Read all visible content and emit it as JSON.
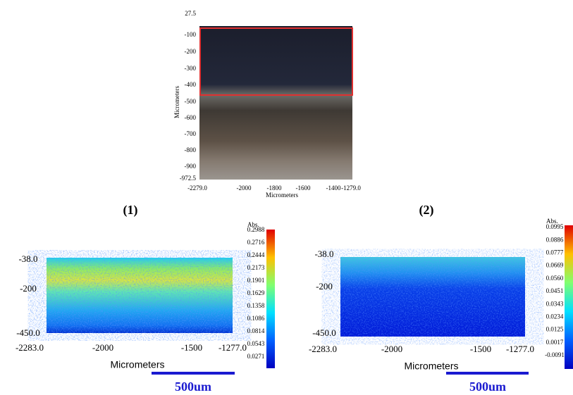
{
  "top_panel": {
    "y_axis_label": "Micrometers",
    "x_axis_label": "Micrometers",
    "yticks": [
      "27.5",
      "-100",
      "-200",
      "-300",
      "-400",
      "-500",
      "-600",
      "-700",
      "-800",
      "-900",
      "-972.5"
    ],
    "xticks": [
      "-2279.0",
      "-2000",
      "-1800",
      "-1600",
      "-1400",
      "-1279.0"
    ]
  },
  "panel_labels": [
    "(1)",
    "(2)"
  ],
  "maps": [
    {
      "yticks": [
        "-38.0",
        "-200",
        "-450.0"
      ],
      "xticks": [
        "-2283.0",
        "-2000",
        "-1500",
        "-1277.0"
      ],
      "x_axis_label": "Micrometers",
      "colorbar_title": "Abs.",
      "colorbar_ticks": [
        "0.2988",
        "0.2716",
        "0.2444",
        "0.2173",
        "0.1901",
        "0.1629",
        "0.1358",
        "0.1086",
        "0.0814",
        "0.0543",
        "0.0271"
      ],
      "scale_bar": "500um"
    },
    {
      "yticks": [
        "-38.0",
        "-200",
        "-450.0"
      ],
      "xticks": [
        "-2283.0",
        "-2000",
        "-1500",
        "-1277.0"
      ],
      "x_axis_label": "Micrometers",
      "colorbar_title": "Abs.",
      "colorbar_ticks": [
        "0.0995",
        "0.0886",
        "0.0777",
        "0.0669",
        "0.0560",
        "0.0451",
        "0.0343",
        "0.0234",
        "0.0125",
        "0.0017",
        "-0.0091"
      ],
      "scale_bar": "500um"
    }
  ]
}
